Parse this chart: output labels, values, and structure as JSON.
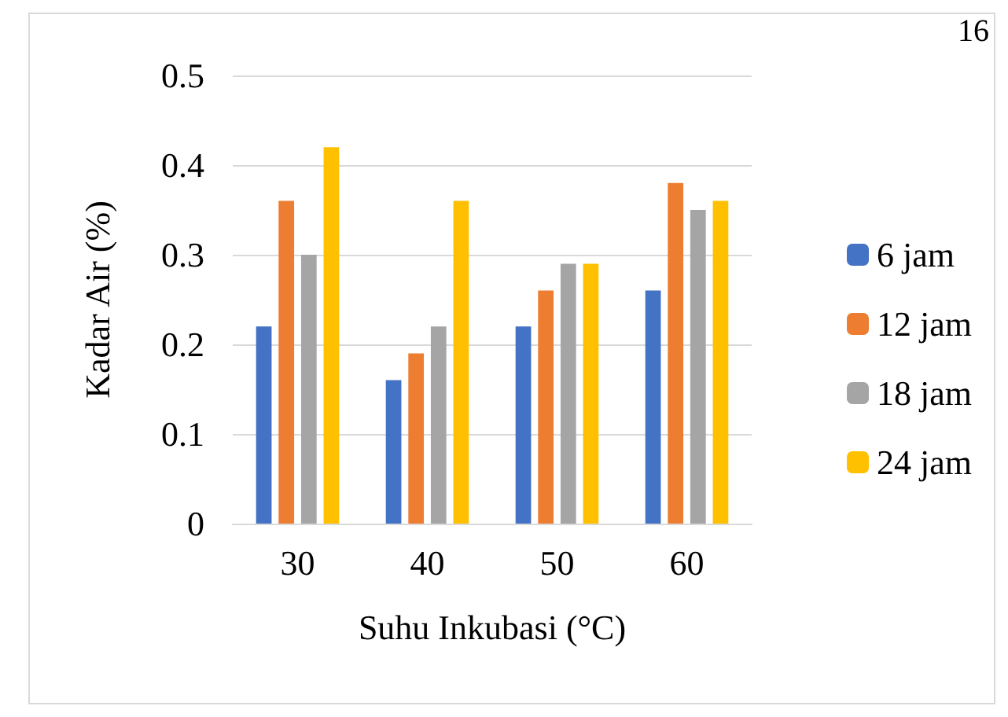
{
  "chart_data": {
    "type": "bar",
    "xlabel": "Suhu Inkubasi (°C)",
    "ylabel": "Kadar Air (%)",
    "categories": [
      "30",
      "40",
      "50",
      "60"
    ],
    "series": [
      {
        "name": "6 jam",
        "color": "#4472c4",
        "values": [
          0.22,
          0.16,
          0.22,
          0.26
        ]
      },
      {
        "name": "12 jam",
        "color": "#ed7d31",
        "values": [
          0.36,
          0.19,
          0.26,
          0.38
        ]
      },
      {
        "name": "18 jam",
        "color": "#a5a5a5",
        "values": [
          0.3,
          0.22,
          0.29,
          0.35
        ]
      },
      {
        "name": "24 jam",
        "color": "#ffc000",
        "values": [
          0.42,
          0.36,
          0.29,
          0.36
        ]
      }
    ],
    "ylim": [
      0,
      0.5
    ],
    "yticks": [
      0,
      0.1,
      0.2,
      0.3,
      0.4,
      0.5
    ],
    "grid": "y",
    "legend": "right",
    "annotations": [
      "16"
    ]
  }
}
